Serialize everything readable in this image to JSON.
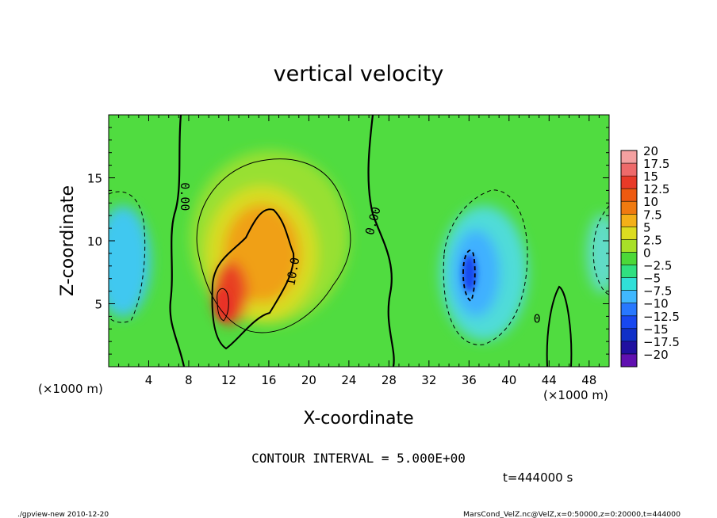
{
  "chart_data": {
    "type": "heatmap",
    "title": "vertical velocity",
    "xlabel": "X-coordinate",
    "ylabel": "Z-coordinate",
    "x_unit": "(×1000 m)",
    "y_unit": "(×1000 m)",
    "xlim": [
      0,
      50
    ],
    "ylim": [
      0,
      20
    ],
    "x_ticks": [
      4,
      8,
      12,
      16,
      20,
      24,
      28,
      32,
      36,
      40,
      44,
      48
    ],
    "y_ticks": [
      5,
      10,
      15
    ],
    "colorbar": {
      "levels": [
        "20",
        "17.5",
        "15",
        "12.5",
        "10",
        "7.5",
        "5",
        "2.5",
        "0",
        "−2.5",
        "−5",
        "−7.5",
        "−10",
        "−12.5",
        "−15",
        "−17.5",
        "−20"
      ],
      "colors": [
        "#f4a0a0",
        "#ee6a6a",
        "#e83a28",
        "#ee5a10",
        "#f07a10",
        "#f4b018",
        "#dcdc20",
        "#a8e028",
        "#4cd838",
        "#30e080",
        "#30e0d8",
        "#40b8ff",
        "#2878ff",
        "#1848f0",
        "#1030c8",
        "#2010a0",
        "#6010b0"
      ]
    },
    "contour_labels": [
      {
        "text": "0.00",
        "x": 7.2,
        "z": 13.5,
        "angle": 90
      },
      {
        "text": "10.0",
        "x": 18.8,
        "z": 7.5,
        "angle": -80
      },
      {
        "text": "0.00",
        "x": 26.8,
        "z": 11.5,
        "angle": -75
      },
      {
        "text": "0",
        "x": 42.8,
        "z": 3.5,
        "angle": 0
      }
    ],
    "features": [
      {
        "kind": "updraft",
        "x": 12.5,
        "z": 7.5,
        "peak": 17.5
      },
      {
        "kind": "downdraft",
        "x": 36,
        "z": 7.5,
        "peak": -12.5
      },
      {
        "kind": "downdraft",
        "x": 1,
        "z": 8.5,
        "peak": -7.5
      }
    ]
  },
  "annotations": {
    "contour_interval": "CONTOUR INTERVAL = 5.000E+00",
    "time": "t=444000 s",
    "footer_left": "./gpview-new  2010-12-20",
    "footer_right": "MarsCond_VelZ.nc@VelZ,x=0:50000,z=0:20000,t=444000"
  }
}
